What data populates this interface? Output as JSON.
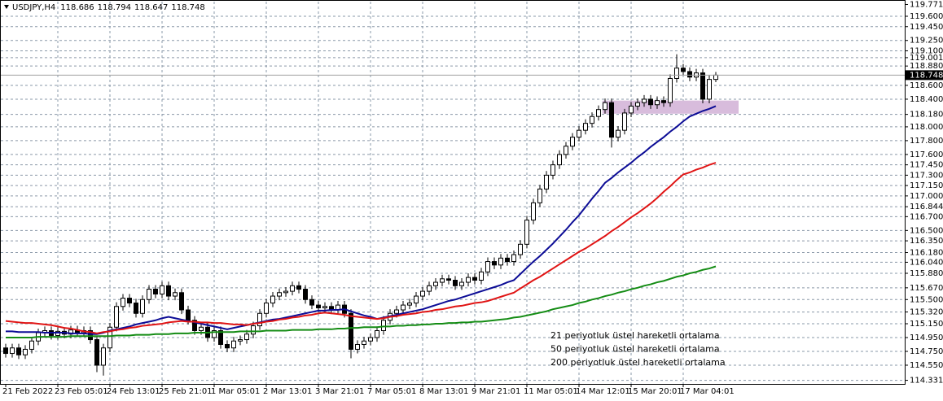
{
  "chart_data": {
    "type": "candlestick",
    "symbol": "USDJPY,H4",
    "categories": [
      "21 Feb 2022",
      null,
      null,
      null,
      null,
      null,
      null,
      null,
      "23 Feb 05:01",
      null,
      null,
      null,
      null,
      null,
      null,
      null,
      "24 Feb 13:01",
      null,
      null,
      null,
      null,
      null,
      null,
      null,
      "25 Feb 21:01",
      null,
      null,
      null,
      null,
      null,
      null,
      null,
      "1 Mar 05:01",
      null,
      null,
      null,
      null,
      null,
      null,
      null,
      "2 Mar 13:01",
      null,
      null,
      null,
      null,
      null,
      null,
      null,
      "3 Mar 21:01",
      null,
      null,
      null,
      null,
      null,
      null,
      null,
      "7 Mar 05:01",
      null,
      null,
      null,
      null,
      null,
      null,
      null,
      "8 Mar 13:01",
      null,
      null,
      null,
      null,
      null,
      null,
      null,
      "9 Mar 21:01",
      null,
      null,
      null,
      null,
      null,
      null,
      null,
      "11 Mar 05:01",
      null,
      null,
      null,
      null,
      null,
      null,
      null,
      "14 Mar 12:01",
      null,
      null,
      null,
      null,
      null,
      null,
      null,
      "15 Mar 20:01",
      null,
      null,
      null,
      null,
      null,
      null,
      null,
      "17 Mar 04:01",
      null,
      null,
      null,
      null,
      null
    ],
    "open": [
      114.8,
      114.72,
      114.8,
      114.7,
      114.78,
      114.9,
      115.02,
      115.05,
      114.98,
      115.04,
      115.0,
      115.06,
      115.02,
      115.05,
      114.92,
      114.55,
      114.8,
      115.1,
      115.4,
      115.52,
      115.45,
      115.3,
      115.5,
      115.65,
      115.58,
      115.7,
      115.55,
      115.6,
      115.35,
      115.2,
      115.05,
      115.1,
      114.95,
      115.05,
      114.85,
      114.8,
      114.9,
      114.92,
      115.0,
      115.12,
      115.3,
      115.45,
      115.55,
      115.6,
      115.62,
      115.7,
      115.65,
      115.5,
      115.42,
      115.38,
      115.4,
      115.35,
      115.42,
      115.3,
      114.78,
      114.85,
      114.9,
      114.95,
      115.05,
      115.2,
      115.3,
      115.35,
      115.42,
      115.45,
      115.55,
      115.62,
      115.7,
      115.75,
      115.8,
      115.78,
      115.7,
      115.75,
      115.82,
      115.78,
      115.9,
      116.05,
      116.0,
      116.1,
      116.05,
      116.15,
      116.3,
      116.65,
      116.9,
      117.1,
      117.3,
      117.45,
      117.6,
      117.72,
      117.85,
      117.95,
      118.05,
      118.15,
      118.25,
      118.35,
      117.85,
      117.95,
      118.2,
      118.3,
      118.35,
      118.4,
      118.32,
      118.38,
      118.35,
      118.7,
      118.85,
      118.8,
      118.72,
      118.78,
      118.4,
      118.686
    ],
    "high": [
      114.86,
      114.86,
      114.86,
      114.84,
      114.96,
      115.08,
      115.11,
      115.11,
      115.1,
      115.1,
      115.12,
      115.12,
      115.11,
      115.11,
      114.98,
      114.86,
      115.16,
      115.46,
      115.58,
      115.58,
      115.51,
      115.56,
      115.71,
      115.71,
      115.76,
      115.76,
      115.66,
      115.66,
      115.41,
      115.26,
      115.16,
      115.16,
      115.11,
      115.11,
      114.91,
      114.96,
      114.98,
      115.06,
      115.18,
      115.36,
      115.51,
      115.61,
      115.66,
      115.68,
      115.76,
      115.76,
      115.71,
      115.56,
      115.48,
      115.46,
      115.46,
      115.48,
      115.48,
      115.36,
      114.91,
      114.96,
      115.01,
      115.11,
      115.26,
      115.36,
      115.41,
      115.48,
      115.51,
      115.61,
      115.68,
      115.76,
      115.81,
      115.86,
      115.86,
      115.84,
      115.81,
      115.88,
      115.88,
      115.96,
      116.11,
      116.11,
      116.16,
      116.16,
      116.21,
      116.36,
      116.71,
      116.96,
      117.16,
      117.36,
      117.51,
      117.66,
      117.78,
      117.91,
      118.01,
      118.11,
      118.21,
      118.31,
      118.41,
      118.41,
      118.01,
      118.26,
      118.36,
      118.41,
      118.46,
      118.46,
      118.44,
      118.44,
      118.76,
      119.05,
      118.91,
      118.86,
      118.84,
      118.84,
      118.75,
      118.794
    ],
    "low": [
      114.66,
      114.66,
      114.64,
      114.64,
      114.72,
      114.84,
      114.96,
      114.92,
      114.92,
      114.94,
      114.94,
      114.96,
      114.96,
      114.86,
      114.45,
      114.4,
      114.74,
      115.04,
      115.34,
      115.39,
      115.24,
      115.24,
      115.44,
      115.52,
      115.52,
      115.49,
      115.49,
      115.29,
      115.14,
      114.99,
      114.99,
      114.89,
      114.89,
      114.79,
      114.74,
      114.74,
      114.84,
      114.86,
      114.94,
      115.06,
      115.24,
      115.39,
      115.49,
      115.54,
      115.56,
      115.59,
      115.44,
      115.36,
      115.32,
      115.32,
      115.29,
      115.29,
      115.24,
      114.65,
      114.72,
      114.79,
      114.84,
      114.89,
      114.99,
      115.14,
      115.24,
      115.29,
      115.36,
      115.39,
      115.49,
      115.56,
      115.64,
      115.69,
      115.72,
      115.64,
      115.64,
      115.69,
      115.72,
      115.72,
      115.84,
      115.94,
      115.94,
      115.99,
      115.99,
      116.09,
      116.24,
      116.59,
      116.84,
      117.04,
      117.24,
      117.39,
      117.54,
      117.66,
      117.79,
      117.89,
      117.99,
      118.09,
      118.19,
      117.7,
      117.79,
      117.89,
      118.14,
      118.24,
      118.29,
      118.26,
      118.26,
      118.29,
      118.29,
      118.64,
      118.74,
      118.66,
      118.66,
      118.34,
      118.34,
      118.647
    ],
    "close": [
      114.72,
      114.8,
      114.7,
      114.78,
      114.9,
      115.02,
      115.05,
      114.98,
      115.04,
      115.0,
      115.06,
      115.02,
      115.05,
      114.92,
      114.55,
      114.8,
      115.1,
      115.4,
      115.52,
      115.45,
      115.3,
      115.5,
      115.65,
      115.58,
      115.7,
      115.55,
      115.6,
      115.35,
      115.2,
      115.05,
      115.1,
      114.95,
      115.05,
      114.85,
      114.8,
      114.9,
      114.92,
      115.0,
      115.12,
      115.3,
      115.45,
      115.55,
      115.6,
      115.62,
      115.7,
      115.65,
      115.5,
      115.42,
      115.38,
      115.4,
      115.35,
      115.42,
      115.3,
      114.78,
      114.85,
      114.9,
      114.95,
      115.05,
      115.2,
      115.3,
      115.35,
      115.42,
      115.45,
      115.55,
      115.62,
      115.7,
      115.75,
      115.8,
      115.78,
      115.7,
      115.75,
      115.82,
      115.78,
      115.9,
      116.05,
      116.0,
      116.1,
      116.05,
      116.15,
      116.3,
      116.65,
      116.9,
      117.1,
      117.3,
      117.45,
      117.6,
      117.72,
      117.85,
      117.95,
      118.05,
      118.15,
      118.25,
      118.35,
      117.85,
      117.95,
      118.2,
      118.3,
      118.35,
      118.4,
      118.32,
      118.38,
      118.35,
      118.7,
      118.85,
      118.8,
      118.72,
      118.78,
      118.4,
      118.686,
      118.748
    ],
    "bull_color": "#ffffff",
    "bear_color": "#000000",
    "series": [
      {
        "name": "21 periyotluk üstel hareketli ortalama",
        "color": "#0c0c96",
        "values": [
          115.04,
          115.04,
          115.03,
          115.03,
          115.03,
          115.03,
          115.02,
          115.02,
          115.02,
          115.02,
          115.01,
          115.01,
          115.01,
          115.0,
          115.0,
          115.02,
          115.05,
          115.07,
          115.09,
          115.11,
          115.14,
          115.16,
          115.18,
          115.2,
          115.23,
          115.25,
          115.23,
          115.21,
          115.19,
          115.17,
          115.15,
          115.13,
          115.11,
          115.09,
          115.07,
          115.09,
          115.11,
          115.13,
          115.15,
          115.17,
          115.19,
          115.21,
          115.22,
          115.24,
          115.26,
          115.28,
          115.3,
          115.32,
          115.34,
          115.34,
          115.35,
          115.35,
          115.36,
          115.33,
          115.3,
          115.27,
          115.25,
          115.22,
          115.24,
          115.26,
          115.28,
          115.3,
          115.32,
          115.34,
          115.36,
          115.39,
          115.42,
          115.45,
          115.48,
          115.5,
          115.53,
          115.56,
          115.59,
          115.62,
          115.65,
          115.68,
          115.71,
          115.75,
          115.78,
          115.87,
          115.96,
          116.05,
          116.13,
          116.22,
          116.31,
          116.41,
          116.51,
          116.62,
          116.72,
          116.84,
          116.96,
          117.07,
          117.19,
          117.26,
          117.34,
          117.41,
          117.48,
          117.56,
          117.63,
          117.71,
          117.78,
          117.85,
          117.93,
          118.0,
          118.08,
          118.15,
          118.19,
          118.23,
          118.26,
          118.3
        ]
      },
      {
        "name": "50 periyotluk üstel hareketli ortalama",
        "color": "#e01414",
        "values": [
          115.19,
          115.18,
          115.17,
          115.16,
          115.16,
          115.15,
          115.14,
          115.13,
          115.11,
          115.09,
          115.08,
          115.06,
          115.04,
          115.03,
          115.01,
          115.03,
          115.04,
          115.06,
          115.07,
          115.09,
          115.1,
          115.12,
          115.13,
          115.14,
          115.15,
          115.17,
          115.18,
          115.19,
          115.18,
          115.18,
          115.17,
          115.17,
          115.16,
          115.16,
          115.15,
          115.14,
          115.14,
          115.13,
          115.15,
          115.16,
          115.18,
          115.19,
          115.21,
          115.22,
          115.24,
          115.25,
          115.27,
          115.28,
          115.3,
          115.31,
          115.3,
          115.29,
          115.28,
          115.26,
          115.25,
          115.24,
          115.23,
          115.22,
          115.23,
          115.25,
          115.26,
          115.28,
          115.29,
          115.3,
          115.32,
          115.33,
          115.35,
          115.36,
          115.38,
          115.4,
          115.41,
          115.43,
          115.45,
          115.46,
          115.48,
          115.51,
          115.54,
          115.57,
          115.6,
          115.66,
          115.72,
          115.78,
          115.83,
          115.89,
          115.95,
          116.01,
          116.07,
          116.13,
          116.19,
          116.24,
          116.3,
          116.36,
          116.42,
          116.49,
          116.55,
          116.62,
          116.69,
          116.75,
          116.82,
          116.89,
          116.97,
          117.06,
          117.14,
          117.23,
          117.31,
          117.34,
          117.38,
          117.41,
          117.45,
          117.48
        ]
      },
      {
        "name": "200 periyotluk üstel hareketli ortalama",
        "color": "#148c14",
        "values": [
          114.95,
          114.95,
          114.95,
          114.95,
          114.95,
          114.96,
          114.96,
          114.96,
          114.96,
          114.96,
          114.97,
          114.97,
          114.97,
          114.97,
          114.97,
          114.97,
          114.97,
          114.98,
          114.98,
          114.98,
          114.99,
          114.99,
          114.99,
          115.0,
          115.0,
          115.0,
          115.01,
          115.01,
          115.01,
          115.02,
          115.02,
          115.02,
          115.03,
          115.03,
          115.03,
          115.03,
          115.04,
          115.04,
          115.04,
          115.04,
          115.05,
          115.05,
          115.05,
          115.05,
          115.06,
          115.06,
          115.06,
          115.06,
          115.07,
          115.07,
          115.07,
          115.08,
          115.08,
          115.09,
          115.09,
          115.1,
          115.1,
          115.1,
          115.11,
          115.11,
          115.12,
          115.12,
          115.13,
          115.13,
          115.14,
          115.14,
          115.15,
          115.15,
          115.16,
          115.16,
          115.17,
          115.17,
          115.18,
          115.18,
          115.19,
          115.2,
          115.21,
          115.22,
          115.24,
          115.25,
          115.27,
          115.29,
          115.31,
          115.33,
          115.36,
          115.38,
          115.4,
          115.42,
          115.45,
          115.47,
          115.5,
          115.52,
          115.55,
          115.57,
          115.6,
          115.62,
          115.65,
          115.67,
          115.7,
          115.72,
          115.75,
          115.77,
          115.8,
          115.83,
          115.85,
          115.88,
          115.9,
          115.93,
          115.95,
          115.98
        ]
      }
    ],
    "zone": {
      "low": 118.19,
      "high": 118.38,
      "color": "#d8bcdc"
    },
    "ylim": [
      114.279,
      119.812
    ],
    "yticks": [
      119.771,
      {
        "value": 119.6,
        "label": "119.600"
      },
      {
        "value": 119.45,
        "label": "119.450"
      },
      {
        "value": 119.25,
        "label": "119.250"
      },
      {
        "value": 119.1,
        "label": "119.100"
      },
      119.001,
      {
        "value": 118.88,
        "label": "118.880"
      },
      {
        "value": 118.6,
        "label": "118.600"
      },
      {
        "value": 118.4,
        "label": "118.400"
      },
      {
        "value": 118.18,
        "label": "118.180"
      },
      {
        "value": 118.0,
        "label": "118.000"
      },
      {
        "value": 117.8,
        "label": "117.800"
      },
      {
        "value": 117.6,
        "label": "117.600"
      },
      {
        "value": 117.45,
        "label": "117.450"
      },
      {
        "value": 117.3,
        "label": "117.300"
      },
      {
        "value": 117.15,
        "label": "117.150"
      },
      {
        "value": 117.0,
        "label": "117.000"
      },
      116.844,
      {
        "value": 116.7,
        "label": "116.700"
      },
      {
        "value": 116.5,
        "label": "116.500"
      },
      {
        "value": 116.35,
        "label": "116.350"
      },
      {
        "value": 116.18,
        "label": "116.180"
      },
      {
        "value": 116.04,
        "label": "116.040"
      },
      {
        "value": 115.88,
        "label": "115.880"
      },
      {
        "value": 115.67,
        "label": "115.670"
      },
      {
        "value": 115.5,
        "label": "115.500"
      },
      {
        "value": 115.32,
        "label": "115.320"
      },
      {
        "value": 115.15,
        "label": "115.150"
      },
      {
        "value": 114.95,
        "label": "114.950"
      },
      {
        "value": 114.75,
        "label": "114.750"
      },
      {
        "value": 114.55,
        "label": "114.550"
      },
      114.331
    ],
    "grid": true
  }
}
